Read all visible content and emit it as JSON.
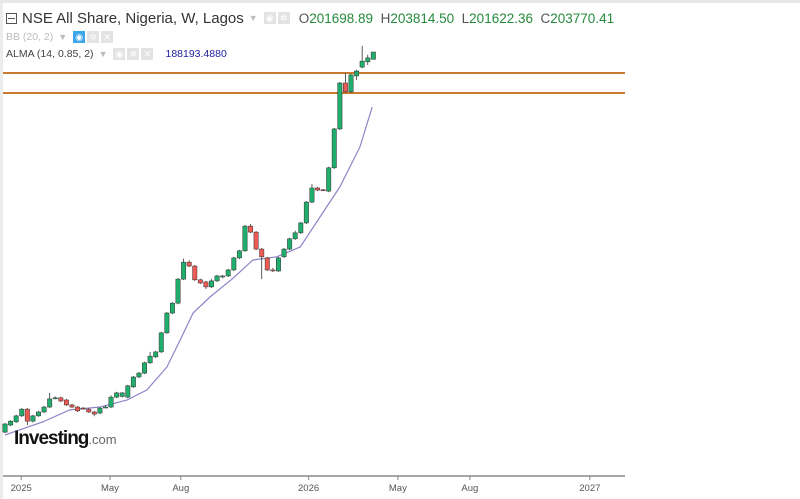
{
  "header": {
    "title": "NSE All Share, Nigeria, W, Lagos",
    "open_label": "O",
    "open": "201698.89",
    "high_label": "H",
    "high": "203814.50",
    "low_label": "L",
    "low": "201622.36",
    "close_label": "C",
    "close": "203770.41"
  },
  "indicators": [
    {
      "label": "BB (20, 2)",
      "visible": true
    },
    {
      "label": "ALMA (14, 0.85, 2)",
      "value": "188193.4880"
    }
  ],
  "logo": {
    "main": "Investing",
    "suffix": ".com"
  },
  "colors": {
    "up": "#1fae6b",
    "down": "#ee5a54",
    "alma": "#8a86c8",
    "hline": "#c97a2e",
    "axis": "#888888"
  },
  "chart_data": {
    "type": "candlestick",
    "title": "NSE All Share, Nigeria, W, Lagos",
    "interval": "W",
    "ylim": [
      83780,
      218490
    ],
    "xlim": [
      -0.9,
      111.1
    ],
    "x_ticks": [
      {
        "label": "2025",
        "index": 2.9
      },
      {
        "label": "May",
        "index": 18.8
      },
      {
        "label": "Aug",
        "index": 31.5
      },
      {
        "label": "2026",
        "index": 54.4
      },
      {
        "label": "May",
        "index": 70.4
      },
      {
        "label": "Aug",
        "index": 83.3
      },
      {
        "label": "2027",
        "index": 104.8
      }
    ],
    "horizontal_levels": [
      197830,
      192170
    ],
    "candles_ohlc": [
      [
        96200,
        98800,
        95900,
        98500
      ],
      [
        98200,
        99600,
        97900,
        99300
      ],
      [
        99100,
        101100,
        98800,
        100800
      ],
      [
        100800,
        103000,
        100500,
        102700
      ],
      [
        102700,
        103000,
        98200,
        99300
      ],
      [
        99300,
        101100,
        99000,
        100800
      ],
      [
        100800,
        102200,
        100500,
        101900
      ],
      [
        101900,
        103600,
        101600,
        103300
      ],
      [
        103300,
        107300,
        103000,
        105600
      ],
      [
        105800,
        106300,
        105500,
        105900
      ],
      [
        105900,
        106200,
        104700,
        105000
      ],
      [
        105300,
        105600,
        103600,
        103900
      ],
      [
        103900,
        104200,
        103000,
        103300
      ],
      [
        103300,
        103600,
        101900,
        102200
      ],
      [
        103000,
        103300,
        102700,
        102900
      ],
      [
        102700,
        103000,
        101600,
        101900
      ],
      [
        101900,
        102200,
        100700,
        101300
      ],
      [
        101600,
        103300,
        101300,
        103000
      ],
      [
        103200,
        103700,
        103000,
        103300
      ],
      [
        103300,
        106600,
        103000,
        106100
      ],
      [
        106100,
        107600,
        105800,
        107300
      ],
      [
        106300,
        107500,
        106000,
        107300
      ],
      [
        106100,
        109600,
        105800,
        109300
      ],
      [
        109000,
        112100,
        108700,
        111800
      ],
      [
        111800,
        113200,
        111500,
        112900
      ],
      [
        112900,
        116100,
        112600,
        115800
      ],
      [
        115800,
        118900,
        115500,
        117700
      ],
      [
        117500,
        119200,
        117200,
        118900
      ],
      [
        118900,
        124600,
        118600,
        124300
      ],
      [
        124300,
        130200,
        124000,
        129900
      ],
      [
        129900,
        133000,
        129600,
        132700
      ],
      [
        132700,
        139800,
        132400,
        139500
      ],
      [
        139500,
        145300,
        139200,
        144300
      ],
      [
        144300,
        144800,
        142900,
        143200
      ],
      [
        143200,
        143500,
        139000,
        139300
      ],
      [
        139300,
        139600,
        138100,
        138400
      ],
      [
        138700,
        139000,
        136700,
        137300
      ],
      [
        137300,
        139500,
        137000,
        139000
      ],
      [
        139000,
        140700,
        138700,
        140400
      ],
      [
        140300,
        140600,
        139700,
        140400
      ],
      [
        140400,
        142400,
        140100,
        142100
      ],
      [
        142100,
        145800,
        141800,
        145500
      ],
      [
        145500,
        147800,
        145200,
        147500
      ],
      [
        147500,
        154800,
        147200,
        154500
      ],
      [
        154500,
        155100,
        152500,
        152800
      ],
      [
        152800,
        153100,
        147700,
        148000
      ],
      [
        148000,
        148300,
        139500,
        145800
      ],
      [
        145500,
        145800,
        141800,
        142100
      ],
      [
        142100,
        142700,
        141500,
        141900
      ],
      [
        141800,
        145800,
        141500,
        145500
      ],
      [
        145800,
        148300,
        145500,
        148000
      ],
      [
        148000,
        151200,
        147700,
        150900
      ],
      [
        150900,
        153200,
        150600,
        152600
      ],
      [
        152600,
        155700,
        152300,
        155400
      ],
      [
        155400,
        161600,
        155100,
        161300
      ],
      [
        161300,
        166400,
        161000,
        165300
      ],
      [
        165300,
        165600,
        164400,
        164700
      ],
      [
        164800,
        165000,
        164400,
        164700
      ],
      [
        164400,
        171300,
        164100,
        171000
      ],
      [
        171000,
        182300,
        170700,
        182000
      ],
      [
        182000,
        195300,
        181700,
        195000
      ],
      [
        195000,
        197800,
        192200,
        192500
      ],
      [
        192500,
        197600,
        192200,
        197300
      ],
      [
        197000,
        198700,
        195900,
        198400
      ],
      [
        199500,
        205500,
        199200,
        201200
      ],
      [
        201000,
        203000,
        200100,
        202100
      ],
      [
        201698.89,
        203814.5,
        201622.36,
        203770.41
      ]
    ],
    "alma_points": [
      [
        0,
        95400
      ],
      [
        6.8,
        99100
      ],
      [
        11.6,
        102500
      ],
      [
        17,
        103300
      ],
      [
        21.9,
        105300
      ],
      [
        25.4,
        108100
      ],
      [
        29,
        114600
      ],
      [
        31.4,
        122300
      ],
      [
        33.7,
        129900
      ],
      [
        36.7,
        134400
      ],
      [
        40.9,
        139800
      ],
      [
        44.4,
        144900
      ],
      [
        48.7,
        145800
      ],
      [
        52.9,
        148600
      ],
      [
        60,
        165600
      ],
      [
        63.6,
        176900
      ],
      [
        65.8,
        188200
      ]
    ]
  }
}
